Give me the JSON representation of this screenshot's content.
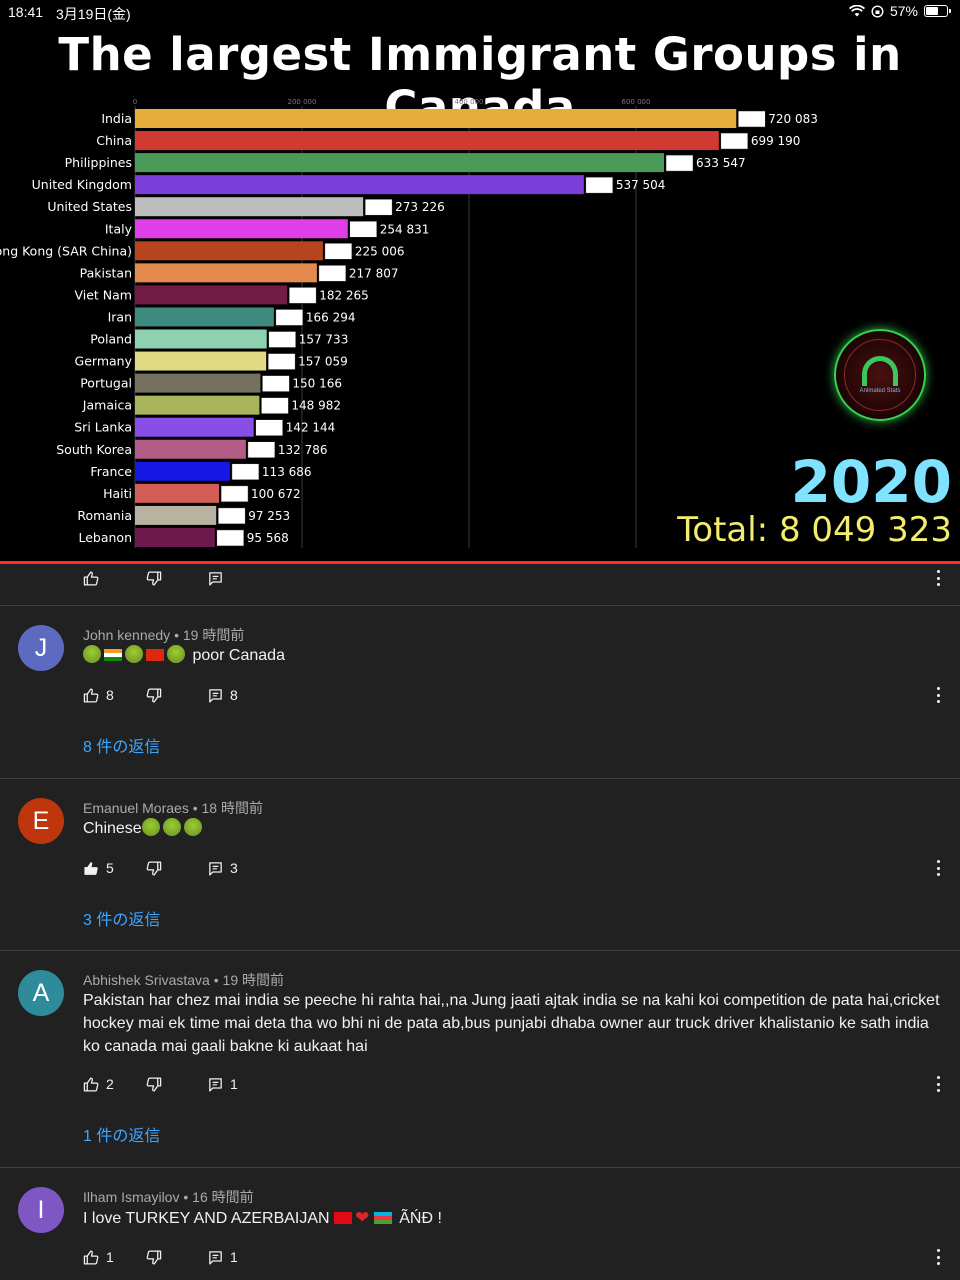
{
  "status_bar": {
    "time": "18:41",
    "date": "3月19日(金)",
    "battery": "57%"
  },
  "video": {
    "title": "The largest Immigrant Groups in Canada",
    "year": "2020",
    "total": "Total: 8 049 323",
    "logo_text": "Animated Stats"
  },
  "chart_data": {
    "type": "bar",
    "orientation": "horizontal",
    "title": "The largest Immigrant Groups in Canada",
    "x_ticks": [
      "0",
      "200 000",
      "400 000",
      "600 000"
    ],
    "xlim": [
      0,
      800000
    ],
    "categories": [
      "India",
      "China",
      "Philippines",
      "United Kingdom",
      "United States",
      "Italy",
      "Hong Kong (SAR China)",
      "Pakistan",
      "Viet Nam",
      "Iran",
      "Poland",
      "Germany",
      "Portugal",
      "Jamaica",
      "Sri Lanka",
      "South Korea",
      "France",
      "Haiti",
      "Romania",
      "Lebanon"
    ],
    "values": [
      720083,
      699190,
      633547,
      537504,
      273226,
      254831,
      225006,
      217807,
      182265,
      166294,
      157733,
      157059,
      150166,
      148982,
      142144,
      132786,
      113686,
      100672,
      97253,
      95568
    ],
    "value_labels": [
      "720 083",
      "699 190",
      "633 547",
      "537 504",
      "273 226",
      "254 831",
      "225 006",
      "217 807",
      "182 265",
      "166 294",
      "157 733",
      "157 059",
      "150 166",
      "148 982",
      "142 144",
      "132 786",
      "113 686",
      "100 672",
      "97 253",
      "95 568"
    ],
    "colors": [
      "#e6ac3c",
      "#d03a32",
      "#4c9a5a",
      "#7a3fd9",
      "#bdbdbd",
      "#e03ee8",
      "#b5451f",
      "#e58a4e",
      "#721c45",
      "#3f8a7e",
      "#8ed1b0",
      "#e2db83",
      "#76705f",
      "#a8b55a",
      "#8a4ee8",
      "#b25c86",
      "#1717e5",
      "#d35e58",
      "#b8b3a0",
      "#6e1a4e"
    ],
    "grid": true
  },
  "comments": [
    {
      "likes": "",
      "reply_count": "",
      "actions_only": true
    },
    {
      "initial": "J",
      "avatar_color": "#5c6bc0",
      "author": "John kennedy",
      "time": "19 時間前",
      "text": "poor Canada",
      "likes": "8",
      "reply_count": "8",
      "replies_label": "8 件の返信"
    },
    {
      "initial": "E",
      "avatar_color": "#bf360c",
      "author": "Emanuel Moraes",
      "time": "18 時間前",
      "text": "Chinese",
      "likes": "5",
      "reply_count": "3",
      "replies_label": "3 件の返信"
    },
    {
      "initial": "A",
      "avatar_color": "#2e8b9a",
      "author": "Abhishek Srivastava",
      "time": "19 時間前",
      "text": "Pakistan har chez mai india se peeche hi rahta hai,,na Jung jaati ajtak india se na kahi koi competition de pata hai,cricket hockey mai ek time mai deta tha wo bhi ni de pata ab,bus punjabi dhaba owner aur truck driver khalistanio ke sath india ko canada mai gaali bakne ki aukaat hai",
      "likes": "2",
      "reply_count": "1",
      "replies_label": "1 件の返信"
    },
    {
      "initial": "I",
      "avatar_color": "#7e57c2",
      "author": "Ilham Ismayilov",
      "time": "16 時間前",
      "text_before": "I love TURKEY AND AZERBAIJAN",
      "text_after": "ÃŃĐ !",
      "likes": "1",
      "reply_count": "1"
    }
  ],
  "icons": {
    "like": "thumbs-up-icon",
    "dislike": "thumbs-down-icon",
    "reply": "reply-icon",
    "more": "kebab-menu-icon"
  }
}
